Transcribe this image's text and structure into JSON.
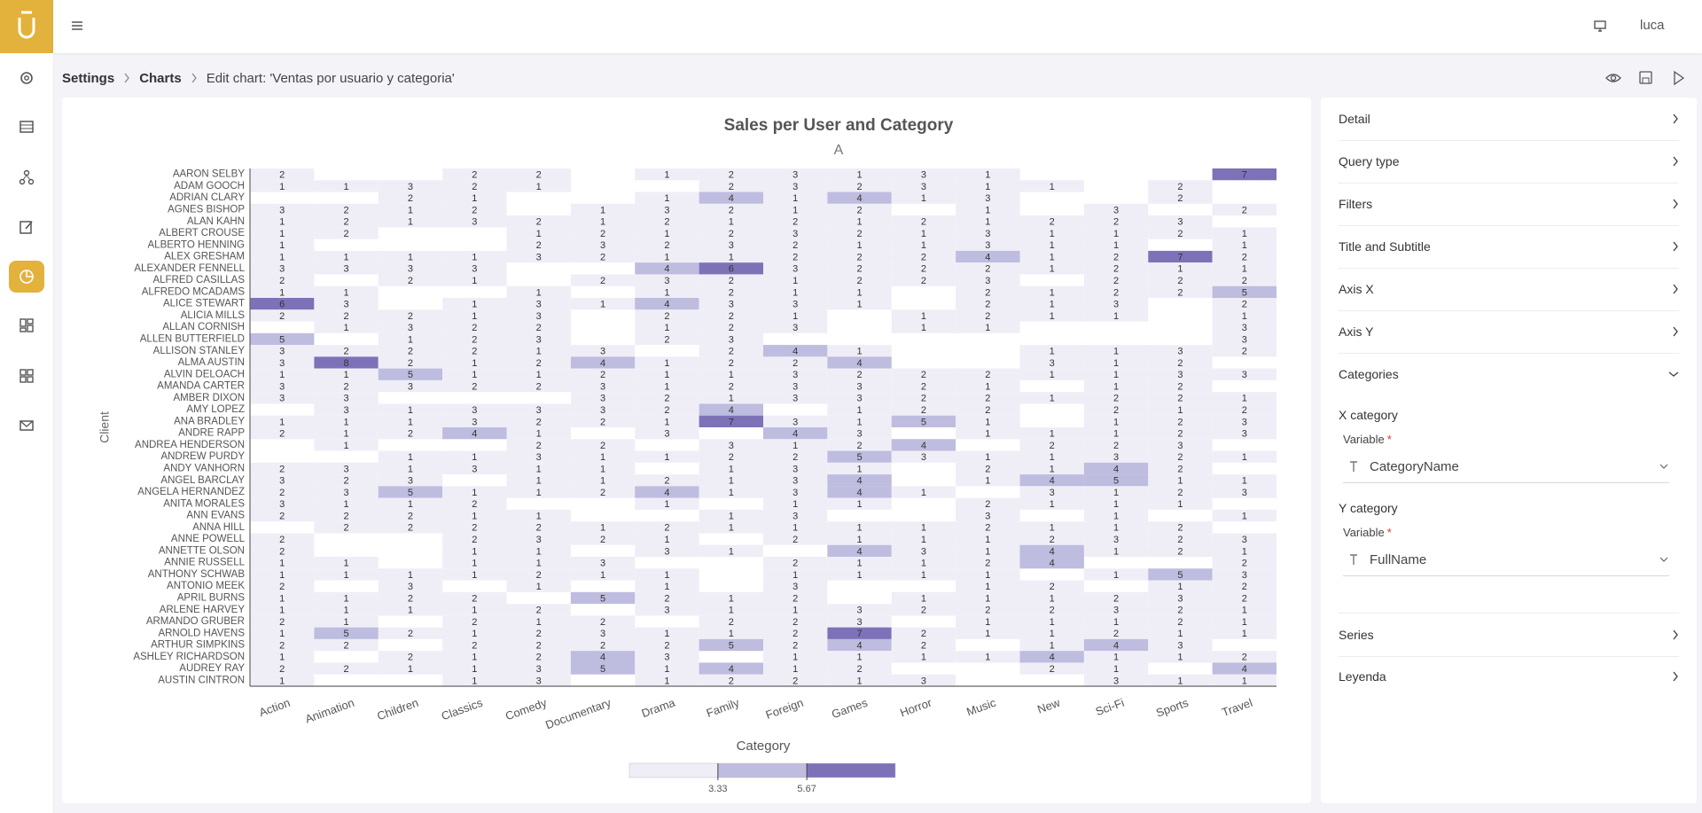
{
  "header": {
    "user": "luca"
  },
  "breadcrumbs": [
    "Settings",
    "Charts",
    "Edit chart: 'Ventas por usuario y categoria'"
  ],
  "panel": {
    "sections": [
      "Detail",
      "Query type",
      "Filters",
      "Title and Subtitle",
      "Axis X",
      "Axis Y",
      "Categories",
      "Series",
      "Leyenda"
    ],
    "x_category": "X category",
    "x_variable_label": "Variable",
    "x_variable": "CategoryName",
    "y_category": "Y category",
    "y_variable_label": "Variable",
    "y_variable": "FullName",
    "required_mark": "*"
  },
  "chart_data": {
    "type": "heatmap",
    "title": "Sales per User and Category",
    "subtitle": "A",
    "x_label": "Category",
    "y_label": "Client",
    "x": [
      "Action",
      "Animation",
      "Children",
      "Classics",
      "Comedy",
      "Documentary",
      "Drama",
      "Family",
      "Foreign",
      "Games",
      "Horror",
      "Music",
      "New",
      "Sci-Fi",
      "Sports",
      "Travel"
    ],
    "y": [
      "AARON SELBY",
      "ADAM GOOCH",
      "ADRIAN CLARY",
      "AGNES BISHOP",
      "ALAN KAHN",
      "ALBERT CROUSE",
      "ALBERTO HENNING",
      "ALEX GRESHAM",
      "ALEXANDER FENNELL",
      "ALFRED CASILLAS",
      "ALFREDO MCADAMS",
      "ALICE STEWART",
      "ALICIA MILLS",
      "ALLAN CORNISH",
      "ALLEN BUTTERFIELD",
      "ALLISON STANLEY",
      "ALMA AUSTIN",
      "ALVIN DELOACH",
      "AMANDA CARTER",
      "AMBER DIXON",
      "AMY LOPEZ",
      "ANA BRADLEY",
      "ANDRE RAPP",
      "ANDREA HENDERSON",
      "ANDREW PURDY",
      "ANDY VANHORN",
      "ANGEL BARCLAY",
      "ANGELA HERNANDEZ",
      "ANITA MORALES",
      "ANN EVANS",
      "ANNA HILL",
      "ANNE POWELL",
      "ANNETTE OLSON",
      "ANNIE RUSSELL",
      "ANTHONY SCHWAB",
      "ANTONIO MEEK",
      "APRIL BURNS",
      "ARLENE HARVEY",
      "ARMANDO GRUBER",
      "ARNOLD HAVENS",
      "ARTHUR SIMPKINS",
      "ASHLEY RICHARDSON",
      "AUDREY RAY",
      "AUSTIN CINTRON"
    ],
    "values": [
      [
        2,
        null,
        null,
        2,
        2,
        null,
        1,
        2,
        3,
        1,
        3,
        1,
        null,
        null,
        null,
        7
      ],
      [
        1,
        1,
        3,
        2,
        1,
        null,
        null,
        2,
        3,
        2,
        3,
        1,
        1,
        null,
        2,
        null
      ],
      [
        null,
        null,
        2,
        1,
        null,
        null,
        1,
        4,
        1,
        4,
        1,
        3,
        null,
        null,
        2,
        null
      ],
      [
        3,
        2,
        1,
        2,
        null,
        1,
        3,
        2,
        1,
        2,
        null,
        1,
        null,
        3,
        null,
        2
      ],
      [
        1,
        2,
        1,
        3,
        2,
        1,
        2,
        1,
        2,
        1,
        2,
        1,
        2,
        2,
        3,
        null
      ],
      [
        1,
        2,
        null,
        null,
        1,
        2,
        1,
        2,
        3,
        2,
        1,
        3,
        1,
        1,
        2,
        1
      ],
      [
        1,
        null,
        null,
        null,
        2,
        3,
        2,
        3,
        2,
        1,
        1,
        3,
        1,
        1,
        null,
        1
      ],
      [
        1,
        1,
        1,
        1,
        3,
        2,
        1,
        1,
        2,
        2,
        2,
        4,
        1,
        2,
        7,
        2
      ],
      [
        3,
        3,
        3,
        3,
        null,
        null,
        4,
        6,
        3,
        2,
        2,
        2,
        1,
        2,
        1,
        1
      ],
      [
        2,
        null,
        2,
        1,
        null,
        2,
        3,
        2,
        1,
        2,
        2,
        3,
        null,
        2,
        2,
        2
      ],
      [
        1,
        1,
        null,
        null,
        1,
        null,
        1,
        2,
        1,
        1,
        null,
        2,
        1,
        2,
        2,
        5
      ],
      [
        6,
        3,
        null,
        1,
        3,
        1,
        4,
        3,
        3,
        1,
        null,
        2,
        1,
        3,
        null,
        2
      ],
      [
        2,
        2,
        2,
        1,
        3,
        null,
        2,
        2,
        1,
        null,
        1,
        2,
        1,
        1,
        null,
        1
      ],
      [
        null,
        1,
        3,
        2,
        2,
        null,
        1,
        2,
        3,
        null,
        1,
        1,
        null,
        null,
        null,
        3
      ],
      [
        5,
        null,
        1,
        2,
        3,
        null,
        2,
        3,
        null,
        null,
        null,
        null,
        null,
        null,
        null,
        3
      ],
      [
        3,
        2,
        2,
        2,
        1,
        3,
        null,
        2,
        4,
        1,
        null,
        null,
        1,
        1,
        3,
        2
      ],
      [
        3,
        8,
        2,
        1,
        2,
        4,
        1,
        2,
        2,
        4,
        null,
        null,
        3,
        1,
        2,
        null
      ],
      [
        1,
        1,
        5,
        1,
        1,
        2,
        1,
        1,
        3,
        2,
        2,
        2,
        1,
        1,
        3,
        3
      ],
      [
        3,
        2,
        3,
        2,
        2,
        3,
        1,
        2,
        3,
        3,
        2,
        1,
        null,
        1,
        2,
        null
      ],
      [
        3,
        3,
        null,
        null,
        null,
        3,
        2,
        1,
        3,
        3,
        2,
        2,
        1,
        2,
        2,
        1
      ],
      [
        null,
        3,
        1,
        3,
        3,
        3,
        2,
        4,
        null,
        1,
        2,
        2,
        null,
        2,
        1,
        2
      ],
      [
        1,
        1,
        1,
        3,
        2,
        2,
        1,
        7,
        3,
        1,
        5,
        1,
        null,
        1,
        2,
        3
      ],
      [
        2,
        1,
        2,
        4,
        1,
        null,
        3,
        null,
        4,
        3,
        null,
        1,
        1,
        1,
        2,
        3
      ],
      [
        null,
        1,
        null,
        null,
        2,
        2,
        null,
        3,
        1,
        2,
        4,
        null,
        2,
        2,
        3,
        null
      ],
      [
        null,
        null,
        1,
        1,
        3,
        1,
        1,
        2,
        2,
        5,
        3,
        1,
        1,
        3,
        2,
        1
      ],
      [
        2,
        3,
        1,
        3,
        1,
        1,
        null,
        1,
        3,
        1,
        null,
        2,
        1,
        4,
        2,
        null
      ],
      [
        3,
        2,
        3,
        null,
        1,
        1,
        2,
        1,
        3,
        4,
        null,
        1,
        4,
        5,
        1,
        1
      ],
      [
        2,
        3,
        5,
        1,
        1,
        2,
        4,
        1,
        3,
        4,
        1,
        null,
        3,
        1,
        2,
        3
      ],
      [
        3,
        1,
        1,
        2,
        null,
        null,
        1,
        null,
        1,
        1,
        null,
        2,
        1,
        1,
        1,
        null
      ],
      [
        2,
        2,
        2,
        1,
        1,
        null,
        null,
        1,
        3,
        null,
        null,
        3,
        null,
        1,
        null,
        1
      ],
      [
        null,
        2,
        2,
        2,
        2,
        1,
        2,
        1,
        1,
        1,
        1,
        2,
        1,
        1,
        2,
        null
      ],
      [
        2,
        null,
        null,
        2,
        3,
        2,
        1,
        null,
        2,
        1,
        1,
        1,
        2,
        3,
        2,
        3
      ],
      [
        2,
        null,
        null,
        1,
        1,
        null,
        3,
        1,
        null,
        4,
        3,
        1,
        4,
        1,
        2,
        1
      ],
      [
        1,
        1,
        null,
        1,
        1,
        3,
        null,
        null,
        2,
        1,
        1,
        2,
        4,
        null,
        null,
        2
      ],
      [
        1,
        1,
        1,
        1,
        2,
        1,
        1,
        null,
        1,
        1,
        1,
        1,
        null,
        1,
        5,
        3
      ],
      [
        2,
        null,
        3,
        null,
        1,
        null,
        1,
        null,
        3,
        null,
        null,
        1,
        2,
        null,
        1,
        2
      ],
      [
        1,
        1,
        2,
        2,
        null,
        5,
        2,
        1,
        2,
        null,
        1,
        1,
        1,
        2,
        3,
        2
      ],
      [
        1,
        1,
        1,
        1,
        2,
        null,
        3,
        1,
        1,
        3,
        2,
        2,
        2,
        3,
        2,
        1
      ],
      [
        2,
        1,
        null,
        2,
        1,
        2,
        null,
        2,
        2,
        3,
        null,
        1,
        1,
        1,
        2,
        1
      ],
      [
        1,
        5,
        2,
        1,
        2,
        3,
        1,
        1,
        2,
        7,
        2,
        1,
        1,
        2,
        1,
        1
      ],
      [
        2,
        2,
        null,
        2,
        2,
        2,
        2,
        5,
        2,
        4,
        2,
        null,
        1,
        4,
        3,
        null
      ],
      [
        1,
        null,
        2,
        1,
        2,
        4,
        3,
        null,
        1,
        1,
        1,
        1,
        4,
        1,
        1,
        2
      ],
      [
        2,
        2,
        1,
        1,
        3,
        5,
        1,
        4,
        1,
        2,
        null,
        null,
        2,
        1,
        null,
        4
      ],
      [
        1,
        null,
        null,
        1,
        3,
        null,
        1,
        2,
        2,
        1,
        3,
        null,
        null,
        3,
        1,
        1
      ]
    ],
    "colorscale": {
      "domain": [
        1,
        8
      ],
      "ticks": [
        3.33,
        5.67
      ],
      "colors": [
        "#efeef7",
        "#bebcdf",
        "#7d72b8"
      ]
    }
  }
}
